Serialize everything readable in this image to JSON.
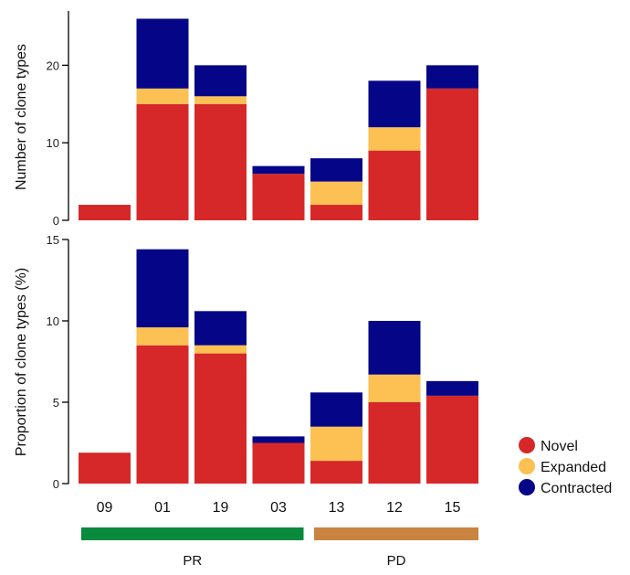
{
  "colors": {
    "novel": "#d62828",
    "expanded": "#fcc152",
    "contracted": "#050687",
    "pr": "#0a8a3c",
    "pd": "#c88440",
    "axis": "#000000"
  },
  "categories": [
    "09",
    "01",
    "19",
    "03",
    "13",
    "12",
    "15"
  ],
  "groups": [
    {
      "label": "PR",
      "members": [
        "09",
        "01",
        "19",
        "03"
      ]
    },
    {
      "label": "PD",
      "members": [
        "13",
        "12",
        "15"
      ]
    }
  ],
  "legend": [
    {
      "label": "Novel",
      "key": "novel"
    },
    {
      "label": "Expanded",
      "key": "expanded"
    },
    {
      "label": "Contracted",
      "key": "contracted"
    }
  ],
  "chart_data": [
    {
      "type": "bar",
      "stacked": true,
      "ylabel": "Number of clone types",
      "ylim": [
        0,
        27
      ],
      "yticks": [
        0,
        10,
        20
      ],
      "categories": [
        "09",
        "01",
        "19",
        "03",
        "13",
        "12",
        "15"
      ],
      "series": [
        {
          "name": "Novel",
          "values": [
            2,
            15,
            15,
            6,
            2,
            9,
            17
          ]
        },
        {
          "name": "Expanded",
          "values": [
            0,
            2,
            1,
            0,
            3,
            3,
            0
          ]
        },
        {
          "name": "Contracted",
          "values": [
            0,
            9,
            4,
            1,
            3,
            6,
            3
          ]
        }
      ]
    },
    {
      "type": "bar",
      "stacked": true,
      "ylabel": "Proportion of clone types (%)",
      "ylim": [
        0,
        15
      ],
      "yticks": [
        0,
        5,
        10,
        15
      ],
      "categories": [
        "09",
        "01",
        "19",
        "03",
        "13",
        "12",
        "15"
      ],
      "series": [
        {
          "name": "Novel",
          "values": [
            1.9,
            8.5,
            8.0,
            2.5,
            1.4,
            5.0,
            5.4
          ]
        },
        {
          "name": "Expanded",
          "values": [
            0,
            1.1,
            0.5,
            0,
            2.1,
            1.7,
            0
          ]
        },
        {
          "name": "Contracted",
          "values": [
            0,
            4.8,
            2.1,
            0.4,
            2.1,
            3.3,
            0.9
          ]
        }
      ]
    }
  ]
}
